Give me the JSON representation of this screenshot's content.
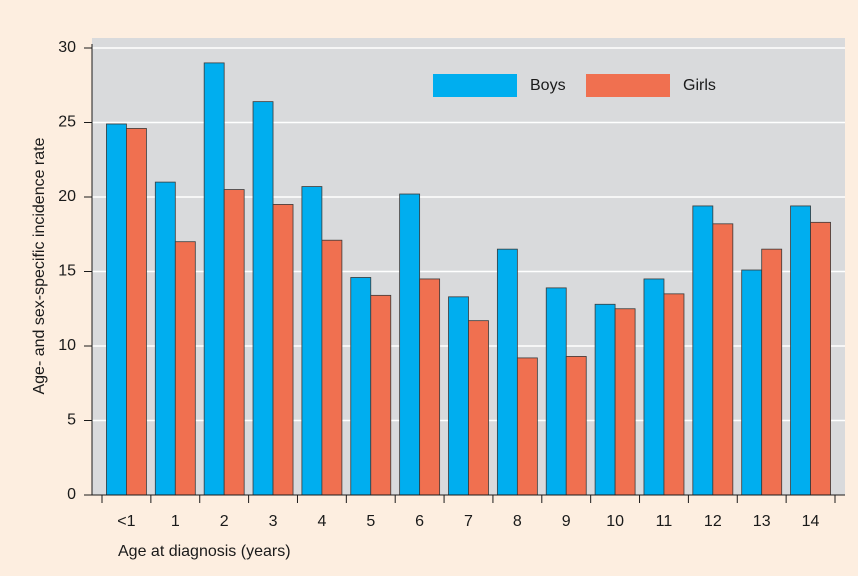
{
  "chart_data": {
    "type": "bar",
    "x_label": "Age at diagnosis (years)",
    "y_label": "Age- and sex-specific incidence rate",
    "categories": [
      "<1",
      "1",
      "2",
      "3",
      "4",
      "5",
      "6",
      "7",
      "8",
      "9",
      "10",
      "11",
      "12",
      "13",
      "14"
    ],
    "series": [
      {
        "name": "Boys",
        "color": "#00aeef",
        "values": [
          24.9,
          21,
          29,
          26.4,
          20.7,
          14.6,
          20.2,
          13.3,
          16.5,
          13.9,
          12.8,
          14.5,
          19.4,
          15.1,
          19.4
        ]
      },
      {
        "name": "Girls",
        "color": "#f07050",
        "values": [
          24.6,
          17,
          20.5,
          19.5,
          17.1,
          13.4,
          14.5,
          11.7,
          9.2,
          9.3,
          12.5,
          13.5,
          18.2,
          16.5,
          18.3
        ]
      }
    ],
    "ylim": [
      0,
      30
    ],
    "yticks": [
      0,
      5,
      10,
      15,
      20,
      25,
      30
    ],
    "grid": true,
    "legend": "top-right"
  }
}
